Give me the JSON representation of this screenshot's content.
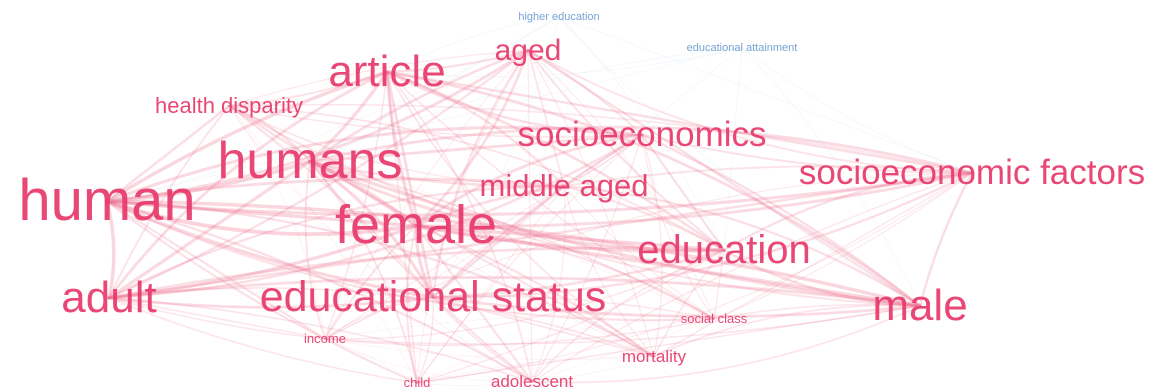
{
  "network": {
    "nodes": [
      {
        "id": "human",
        "label": "human",
        "cluster": "red"
      },
      {
        "id": "humans",
        "label": "humans",
        "cluster": "red"
      },
      {
        "id": "article",
        "label": "article",
        "cluster": "red"
      },
      {
        "id": "aged",
        "label": "aged",
        "cluster": "red"
      },
      {
        "id": "health-disparity",
        "label": "health disparity",
        "cluster": "red"
      },
      {
        "id": "socioeconomics",
        "label": "socioeconomics",
        "cluster": "red"
      },
      {
        "id": "socioeconomic-factors",
        "label": "socioeconomic factors",
        "cluster": "red"
      },
      {
        "id": "middle-aged",
        "label": "middle aged",
        "cluster": "red"
      },
      {
        "id": "female",
        "label": "female",
        "cluster": "red"
      },
      {
        "id": "education",
        "label": "education",
        "cluster": "red"
      },
      {
        "id": "adult",
        "label": "adult",
        "cluster": "red"
      },
      {
        "id": "educational-status",
        "label": "educational status",
        "cluster": "red"
      },
      {
        "id": "male",
        "label": "male",
        "cluster": "red"
      },
      {
        "id": "social-class",
        "label": "social class",
        "cluster": "red"
      },
      {
        "id": "income",
        "label": "income",
        "cluster": "red"
      },
      {
        "id": "mortality",
        "label": "mortality",
        "cluster": "red"
      },
      {
        "id": "child",
        "label": "child",
        "cluster": "red"
      },
      {
        "id": "adolescent",
        "label": "adolescent",
        "cluster": "red"
      },
      {
        "id": "higher-education",
        "label": "higher education",
        "cluster": "blue"
      },
      {
        "id": "educational-attainment",
        "label": "educational attainment",
        "cluster": "blue"
      }
    ],
    "colors": {
      "red_label": "#e8386a",
      "red_edge": "#ee6f8f",
      "blue_label": "#6f9fd0",
      "blue_edge": "#c9dbee"
    }
  }
}
